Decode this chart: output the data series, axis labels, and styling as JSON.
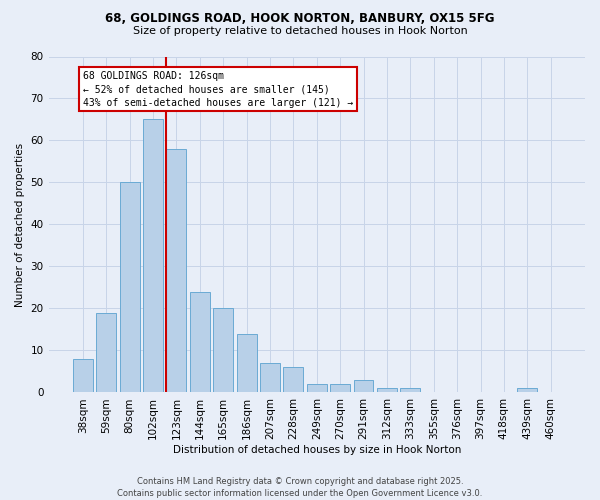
{
  "title1": "68, GOLDINGS ROAD, HOOK NORTON, BANBURY, OX15 5FG",
  "title2": "Size of property relative to detached houses in Hook Norton",
  "xlabel": "Distribution of detached houses by size in Hook Norton",
  "ylabel": "Number of detached properties",
  "categories": [
    "38sqm",
    "59sqm",
    "80sqm",
    "102sqm",
    "123sqm",
    "144sqm",
    "165sqm",
    "186sqm",
    "207sqm",
    "228sqm",
    "249sqm",
    "270sqm",
    "291sqm",
    "312sqm",
    "333sqm",
    "355sqm",
    "376sqm",
    "397sqm",
    "418sqm",
    "439sqm",
    "460sqm"
  ],
  "values": [
    8,
    19,
    50,
    65,
    58,
    24,
    20,
    14,
    7,
    6,
    2,
    2,
    3,
    1,
    1,
    0,
    0,
    0,
    0,
    1,
    0
  ],
  "bar_color": "#b8d0e8",
  "bar_edge_color": "#6aaad4",
  "annotation_text": "68 GOLDINGS ROAD: 126sqm\n← 52% of detached houses are smaller (145)\n43% of semi-detached houses are larger (121) →",
  "annotation_box_color": "#ffffff",
  "annotation_box_edge_color": "#cc0000",
  "vline_color": "#cc0000",
  "vline_x": 3.575,
  "ylim": [
    0,
    80
  ],
  "yticks": [
    0,
    10,
    20,
    30,
    40,
    50,
    60,
    70,
    80
  ],
  "grid_color": "#c8d4e8",
  "background_color": "#e8eef8",
  "footer1": "Contains HM Land Registry data © Crown copyright and database right 2025.",
  "footer2": "Contains public sector information licensed under the Open Government Licence v3.0."
}
